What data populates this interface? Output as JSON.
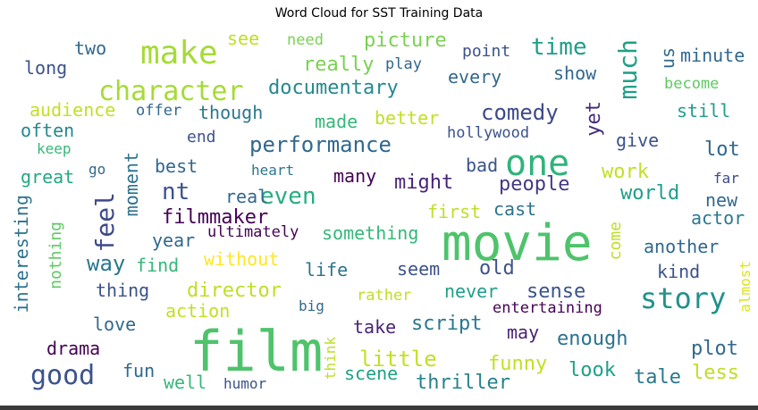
{
  "chart_data": {
    "type": "wordcloud",
    "title": "Word Cloud for SST Training Data",
    "colormap": "viridis",
    "background": "#ffffff",
    "words": [
      {
        "text": "film",
        "weight": 1.0
      },
      {
        "text": "movie",
        "weight": 0.95
      },
      {
        "text": "one",
        "weight": 0.62
      },
      {
        "text": "make",
        "weight": 0.55
      },
      {
        "text": "story",
        "weight": 0.52
      },
      {
        "text": "character",
        "weight": 0.47
      },
      {
        "text": "good",
        "weight": 0.46
      },
      {
        "text": "much",
        "weight": 0.44
      },
      {
        "text": "feel",
        "weight": 0.42
      },
      {
        "text": "time",
        "weight": 0.41
      },
      {
        "text": "even",
        "weight": 0.4
      },
      {
        "text": "nt",
        "weight": 0.4
      },
      {
        "text": "performance",
        "weight": 0.38
      },
      {
        "text": "comedy",
        "weight": 0.37
      },
      {
        "text": "little",
        "weight": 0.36
      },
      {
        "text": "way",
        "weight": 0.36
      },
      {
        "text": "documentary",
        "weight": 0.35
      },
      {
        "text": "really",
        "weight": 0.34
      },
      {
        "text": "picture",
        "weight": 0.34
      },
      {
        "text": "yet",
        "weight": 0.33
      },
      {
        "text": "people",
        "weight": 0.33
      },
      {
        "text": "work",
        "weight": 0.33
      },
      {
        "text": "script",
        "weight": 0.33
      },
      {
        "text": "director",
        "weight": 0.33
      },
      {
        "text": "thriller",
        "weight": 0.33
      },
      {
        "text": "sense",
        "weight": 0.32
      },
      {
        "text": "filmmaker",
        "weight": 0.32
      },
      {
        "text": "might",
        "weight": 0.32
      },
      {
        "text": "world",
        "weight": 0.32
      },
      {
        "text": "enough",
        "weight": 0.31
      },
      {
        "text": "plot",
        "weight": 0.31
      },
      {
        "text": "old",
        "weight": 0.31
      },
      {
        "text": "less",
        "weight": 0.31
      },
      {
        "text": "tale",
        "weight": 0.3
      },
      {
        "text": "look",
        "weight": 0.3
      },
      {
        "text": "funny",
        "weight": 0.3
      },
      {
        "text": "scene",
        "weight": 0.29
      },
      {
        "text": "moment",
        "weight": 0.3
      },
      {
        "text": "interesting",
        "weight": 0.3
      },
      {
        "text": "every",
        "weight": 0.3
      },
      {
        "text": "show",
        "weight": 0.3
      },
      {
        "text": "minute",
        "weight": 0.3
      },
      {
        "text": "us",
        "weight": 0.3
      },
      {
        "text": "life",
        "weight": 0.3
      },
      {
        "text": "seem",
        "weight": 0.3
      },
      {
        "text": "never",
        "weight": 0.3
      },
      {
        "text": "another",
        "weight": 0.3
      },
      {
        "text": "kind",
        "weight": 0.3
      },
      {
        "text": "actor",
        "weight": 0.3
      },
      {
        "text": "new",
        "weight": 0.3
      },
      {
        "text": "cast",
        "weight": 0.3
      },
      {
        "text": "first",
        "weight": 0.3
      },
      {
        "text": "better",
        "weight": 0.3
      },
      {
        "text": "made",
        "weight": 0.3
      },
      {
        "text": "though",
        "weight": 0.3
      },
      {
        "text": "audience",
        "weight": 0.29
      },
      {
        "text": "often",
        "weight": 0.29
      },
      {
        "text": "long",
        "weight": 0.29
      },
      {
        "text": "two",
        "weight": 0.29
      },
      {
        "text": "see",
        "weight": 0.27
      },
      {
        "text": "need",
        "weight": 0.25
      },
      {
        "text": "point",
        "weight": 0.26
      },
      {
        "text": "play",
        "weight": 0.25
      },
      {
        "text": "become",
        "weight": 0.24
      },
      {
        "text": "offer",
        "weight": 0.24
      },
      {
        "text": "end",
        "weight": 0.27
      },
      {
        "text": "still",
        "weight": 0.29
      },
      {
        "text": "give",
        "weight": 0.28
      },
      {
        "text": "lot",
        "weight": 0.29
      },
      {
        "text": "hollywood",
        "weight": 0.24
      },
      {
        "text": "keep",
        "weight": 0.24
      },
      {
        "text": "great",
        "weight": 0.29
      },
      {
        "text": "go",
        "weight": 0.24
      },
      {
        "text": "best",
        "weight": 0.29
      },
      {
        "text": "heart",
        "weight": 0.24
      },
      {
        "text": "many",
        "weight": 0.29
      },
      {
        "text": "bad",
        "weight": 0.29
      },
      {
        "text": "far",
        "weight": 0.26
      },
      {
        "text": "real",
        "weight": 0.29
      },
      {
        "text": "year",
        "weight": 0.28
      },
      {
        "text": "ultimately",
        "weight": 0.24
      },
      {
        "text": "something",
        "weight": 0.29
      },
      {
        "text": "come",
        "weight": 0.28
      },
      {
        "text": "find",
        "weight": 0.29
      },
      {
        "text": "without",
        "weight": 0.29
      },
      {
        "text": "nothing",
        "weight": 0.27
      },
      {
        "text": "thing",
        "weight": 0.29
      },
      {
        "text": "rather",
        "weight": 0.26
      },
      {
        "text": "almost",
        "weight": 0.24
      },
      {
        "text": "action",
        "weight": 0.28
      },
      {
        "text": "big",
        "weight": 0.24
      },
      {
        "text": "entertaining",
        "weight": 0.26
      },
      {
        "text": "love",
        "weight": 0.28
      },
      {
        "text": "take",
        "weight": 0.28
      },
      {
        "text": "may",
        "weight": 0.28
      },
      {
        "text": "think",
        "weight": 0.24
      },
      {
        "text": "drama",
        "weight": 0.28
      },
      {
        "text": "fun",
        "weight": 0.28
      },
      {
        "text": "well",
        "weight": 0.28
      },
      {
        "text": "humor",
        "weight": 0.24
      }
    ]
  },
  "colors": {
    "film": "#4ec36b",
    "movie": "#4ec36b",
    "one": "#2fb47c",
    "make": "#a5db36",
    "story": "#21918c",
    "character": "#a5db36",
    "good": "#3b528b",
    "much": "#1f9e89",
    "feel": "#3e4a89",
    "time": "#1f9e89",
    "even": "#27ad81",
    "nt": "#3b528b",
    "performance": "#31688e",
    "comedy": "#3e4a89",
    "little": "#c2df23",
    "way": "#2a788e",
    "documentary": "#23898e",
    "really": "#7ad151",
    "picture": "#7ad151",
    "yet": "#472d7b",
    "people": "#443983",
    "work": "#c2df23",
    "script": "#2a788e",
    "director": "#bddf26",
    "thriller": "#26828e",
    "sense": "#3b528b",
    "filmmaker": "#440154",
    "might": "#482475",
    "world": "#1f9e89",
    "enough": "#2c728e",
    "plot": "#31688e",
    "old": "#3b528b",
    "less": "#bddf26",
    "tale": "#2a788e",
    "look": "#1fa187",
    "funny": "#c2df23",
    "scene": "#1fa187",
    "moment": "#2c728e",
    "interesting": "#2c728e",
    "every": "#31688e",
    "show": "#31688e",
    "minute": "#31688e",
    "us": "#31688e",
    "life": "#2c728e",
    "seem": "#3b528b",
    "never": "#1f9e89",
    "another": "#31688e",
    "kind": "#3b528b",
    "actor": "#2a788e",
    "new": "#31688e",
    "cast": "#2c728e",
    "first": "#bddf26",
    "better": "#c2df23",
    "made": "#35b779",
    "though": "#2a788e",
    "audience": "#c2df23",
    "often": "#23898e",
    "long": "#3b528b",
    "two": "#31688e",
    "see": "#bddf26",
    "need": "#7ad151",
    "point": "#3b528b",
    "play": "#31688e",
    "become": "#5ec962",
    "offer": "#31688e",
    "end": "#3b528b",
    "still": "#1f9e89",
    "give": "#3b528b",
    "lot": "#31688e",
    "hollywood": "#3b528b",
    "keep": "#35b779",
    "great": "#22a884",
    "go": "#31688e",
    "best": "#31688e",
    "heart": "#2a788e",
    "many": "#440154",
    "bad": "#3b528b",
    "far": "#3e4a89",
    "real": "#31688e",
    "year": "#31688e",
    "ultimately": "#440154",
    "something": "#35b779",
    "come": "#bddf26",
    "find": "#35b779",
    "without": "#fde725",
    "nothing": "#5ec962",
    "thing": "#3b528b",
    "rather": "#bddf26",
    "almost": "#dde318",
    "action": "#c2df23",
    "big": "#31688e",
    "entertaining": "#440154",
    "love": "#31688e",
    "take": "#482475",
    "may": "#482475",
    "think": "#bddf26",
    "drama": "#440154",
    "fun": "#31688e",
    "well": "#35b779",
    "humor": "#3b528b"
  }
}
